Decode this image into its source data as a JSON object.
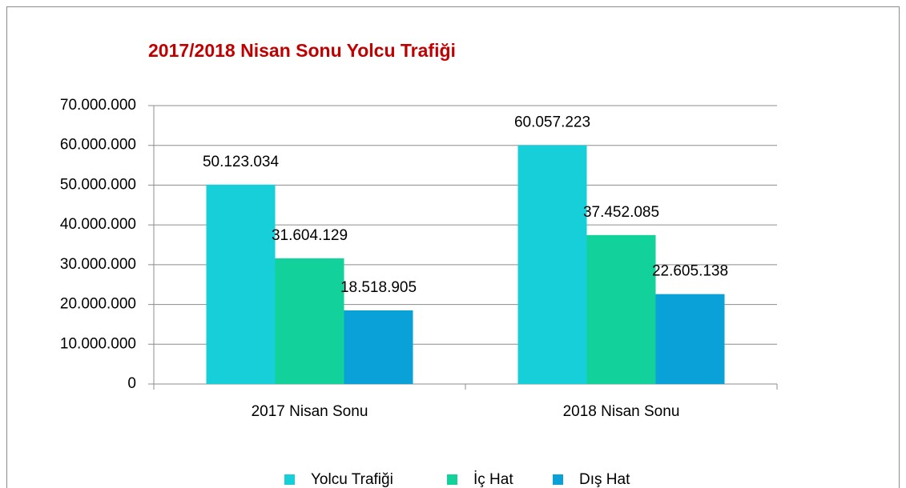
{
  "chart_data": {
    "type": "bar",
    "title": "2017/2018 Nisan Sonu Yolcu Trafiği",
    "categories": [
      "2017 Nisan Sonu",
      "2018 Nisan Sonu"
    ],
    "series": [
      {
        "name": "Yolcu Trafiği",
        "color": "#17cfd8",
        "values": [
          50123034,
          60057223
        ],
        "value_labels": [
          "50.123.034",
          "60.057.223"
        ]
      },
      {
        "name": "İç Hat",
        "color": "#13d19a",
        "values": [
          31604129,
          37452085
        ],
        "value_labels": [
          "31.604.129",
          "37.452.085"
        ]
      },
      {
        "name": "Dış Hat",
        "color": "#0aa0d8",
        "values": [
          18518905,
          22605138
        ],
        "value_labels": [
          "18.518.905",
          "22.605.138"
        ]
      }
    ],
    "ylim": [
      0,
      70000000
    ],
    "yticks": [
      0,
      {
        "value": 10000000,
        "label": "10.000.000"
      },
      {
        "value": 20000000,
        "label": "20.000.000"
      },
      {
        "value": 30000000,
        "label": "30.000.000"
      },
      {
        "value": 40000000,
        "label": "40.000.000"
      },
      {
        "value": 50000000,
        "label": "50.000.000"
      },
      {
        "value": 60000000,
        "label": "60.000.000"
      },
      {
        "value": 70000000,
        "label": "70.000.000"
      }
    ],
    "grid": true,
    "legend": "bottom"
  }
}
